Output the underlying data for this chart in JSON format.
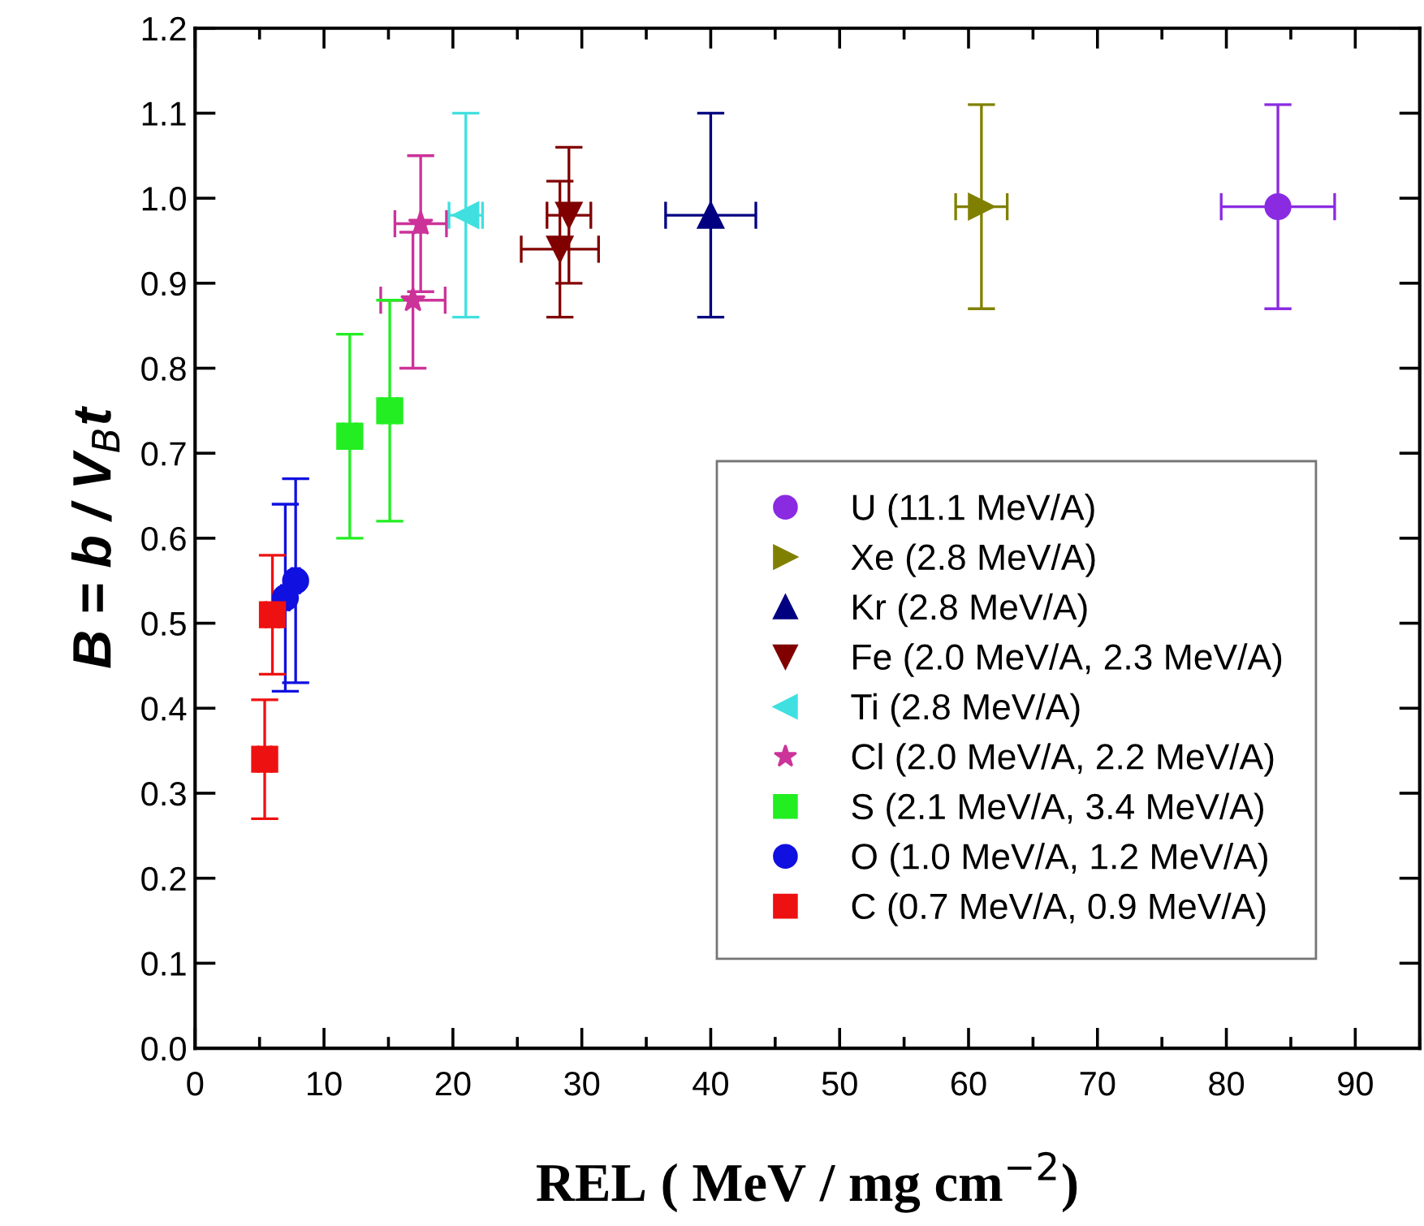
{
  "chart_data": {
    "type": "scatter",
    "xlabel": "REL ( MeV / mg cm$^{−2}$)",
    "ylabel": "B = b / V$_{B}$t",
    "xlim": [
      0,
      95
    ],
    "ylim": [
      0,
      1.2
    ],
    "xticks": [
      0,
      10,
      20,
      30,
      40,
      50,
      60,
      70,
      80,
      90
    ],
    "yticks": [
      {
        "value": 0,
        "label": "0.0"
      },
      0.1,
      0.2,
      0.3,
      0.4,
      0.5,
      0.6,
      0.7,
      0.8,
      0.9,
      {
        "value": 1,
        "label": "1.0"
      },
      1.1,
      1.2
    ],
    "grid": false,
    "legend": "lower right",
    "series": [
      {
        "name": "U (11.1 MeV/A)",
        "color": "#8a2be2",
        "marker": "circle",
        "x": [
          84
        ],
        "values": [
          0.99
        ],
        "errors": [
          0.12
        ],
        "xerrors": [
          4.4
        ]
      },
      {
        "name": "Xe (2.8 MeV/A)",
        "color": "#808000",
        "marker": "triangle-right",
        "x": [
          61
        ],
        "values": [
          0.99
        ],
        "errors": [
          0.12
        ],
        "xerrors": [
          2
        ]
      },
      {
        "name": "Kr (2.8 MeV/A)",
        "color": "#000080",
        "marker": "triangle",
        "x": [
          40
        ],
        "values": [
          0.98
        ],
        "errors": [
          0.12
        ],
        "xerrors": [
          3.5
        ]
      },
      {
        "name": "Fe (2.0 MeV/A, 2.3 MeV/A)",
        "color": "#800000",
        "marker": "triangle-down",
        "x": [
          29,
          28.3
        ],
        "values": [
          0.98,
          0.94
        ],
        "errors": [
          0.08,
          0.08
        ],
        "xerrors": [
          1.7,
          3
        ]
      },
      {
        "name": "Ti (2.8 MeV/A)",
        "color": "#40e0e0",
        "marker": "triangle-left",
        "x": [
          21
        ],
        "values": [
          0.98
        ],
        "errors": [
          0.12
        ],
        "xerrors": [
          1.3
        ]
      },
      {
        "name": "Cl (2.0 MeV/A, 2.2 MeV/A)",
        "color": "#cc3399",
        "marker": "star",
        "x": [
          17.5,
          16.9
        ],
        "values": [
          0.97,
          0.88
        ],
        "errors": [
          0.08,
          0.08
        ],
        "xerrors": [
          2,
          2.5
        ]
      },
      {
        "name": "S (2.1 MeV/A, 3.4 MeV/A)",
        "color": "#22ee22",
        "marker": "square",
        "x": [
          12,
          15.1
        ],
        "values": [
          0.72,
          0.75
        ],
        "errors": [
          0.12,
          0.13
        ],
        "xerrors": [
          0.5,
          0.6
        ]
      },
      {
        "name": "O (1.0 MeV/A, 1.2 MeV/A)",
        "color": "#1010e0",
        "marker": "circle",
        "x": [
          7,
          7.8
        ],
        "values": [
          0.53,
          0.55
        ],
        "errors": [
          0.11,
          0.12
        ],
        "xerrors": [
          0.3,
          0.3
        ]
      },
      {
        "name": "C (0.7 MeV/A, 0.9 MeV/A)",
        "color": "#ee1111",
        "marker": "square",
        "x": [
          6,
          5.4
        ],
        "values": [
          0.51,
          0.34
        ],
        "errors": [
          0.07,
          0.07
        ],
        "xerrors": [
          0.5,
          0.5
        ]
      }
    ]
  }
}
